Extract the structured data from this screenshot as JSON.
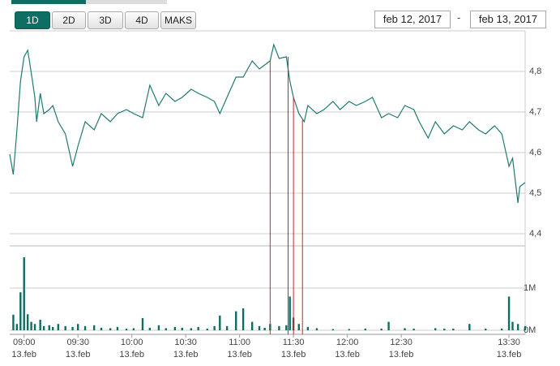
{
  "controls": {
    "ranges": [
      "1D",
      "2D",
      "3D",
      "4D",
      "MAKS"
    ],
    "active_range": 0,
    "from": "feb 12, 2017",
    "separator": "-",
    "to": "feb 13, 2017"
  },
  "chart_data": {
    "type": "line",
    "price": {
      "color": "#1f7a72",
      "x": [
        532,
        534,
        536,
        538,
        540,
        542,
        544,
        546,
        547,
        549,
        551,
        554,
        556,
        559,
        563,
        567,
        570,
        574,
        579,
        583,
        588,
        592,
        597,
        601,
        606,
        610,
        615,
        619,
        624,
        628,
        633,
        637,
        642,
        646,
        649,
        653,
        658,
        662,
        667,
        671,
        674,
        677,
        679,
        682,
        686,
        688,
        690,
        693,
        696,
        698,
        703,
        707,
        712,
        716,
        721,
        725,
        730,
        734,
        739,
        743,
        748,
        752,
        757,
        760,
        765,
        769,
        774,
        779,
        784,
        788,
        793,
        797,
        802,
        806,
        810,
        812,
        815,
        816,
        819
      ],
      "values": [
        4.596,
        4.546,
        4.656,
        4.776,
        4.836,
        4.852,
        4.796,
        4.736,
        4.676,
        4.746,
        4.696,
        4.706,
        4.716,
        4.676,
        4.646,
        4.566,
        4.616,
        4.676,
        4.656,
        4.696,
        4.676,
        4.696,
        4.706,
        4.696,
        4.686,
        4.766,
        4.716,
        4.746,
        4.726,
        4.736,
        4.756,
        4.746,
        4.736,
        4.726,
        4.696,
        4.736,
        4.786,
        4.786,
        4.826,
        4.806,
        4.816,
        4.826,
        4.866,
        4.832,
        4.836,
        4.776,
        4.736,
        4.696,
        4.676,
        4.716,
        4.696,
        4.706,
        4.726,
        4.706,
        4.726,
        4.716,
        4.726,
        4.736,
        4.686,
        4.696,
        4.686,
        4.716,
        4.706,
        4.676,
        4.636,
        4.676,
        4.646,
        4.666,
        4.656,
        4.676,
        4.656,
        4.646,
        4.666,
        4.646,
        4.566,
        4.586,
        4.476,
        4.516,
        4.526
      ]
    },
    "volume": {
      "color": "#0f6e64",
      "axis": "y2",
      "x": [
        534,
        536,
        538,
        540,
        542,
        544,
        546,
        549,
        551,
        554,
        556,
        559,
        563,
        567,
        570,
        574,
        579,
        583,
        588,
        592,
        597,
        601,
        606,
        610,
        615,
        619,
        624,
        628,
        633,
        637,
        642,
        646,
        649,
        653,
        658,
        662,
        667,
        671,
        674,
        677,
        682,
        686,
        688,
        690,
        693,
        698,
        703,
        712,
        721,
        730,
        739,
        743,
        752,
        757,
        769,
        774,
        779,
        788,
        797,
        806,
        810,
        812,
        815,
        819
      ],
      "values": [
        0.37,
        0.15,
        0.9,
        1.73,
        0.38,
        0.2,
        0.15,
        0.25,
        0.1,
        0.12,
        0.08,
        0.15,
        0.1,
        0.08,
        0.15,
        0.1,
        0.12,
        0.06,
        0.05,
        0.08,
        0.04,
        0.05,
        0.29,
        0.06,
        0.12,
        0.05,
        0.08,
        0.06,
        0.05,
        0.08,
        0.04,
        0.1,
        0.35,
        0.1,
        0.45,
        0.52,
        0.2,
        0.1,
        0.06,
        0.15,
        0.1,
        0.12,
        0.8,
        0.3,
        0.15,
        0.08,
        0.05,
        0.03,
        0.03,
        0.04,
        0.04,
        0.2,
        0.05,
        0.04,
        0.05,
        0.04,
        0.04,
        0.15,
        0.04,
        0.04,
        0.8,
        0.2,
        0.15,
        0.1
      ]
    },
    "markers": {
      "color": "#cc2222",
      "x": [
        677,
        687,
        690,
        695
      ],
      "values": [
        4.826,
        4.836,
        4.736,
        4.68
      ]
    },
    "xlim": [
      532,
      819
    ],
    "xticks": [
      {
        "value": 540,
        "label": "09:00"
      },
      {
        "value": 570,
        "label": "09:30"
      },
      {
        "value": 600,
        "label": "10:00"
      },
      {
        "value": 630,
        "label": "10:30"
      },
      {
        "value": 660,
        "label": "11:00"
      },
      {
        "value": 690,
        "label": "11:30"
      },
      {
        "value": 720,
        "label": "12:00"
      },
      {
        "value": 750,
        "label": "12:30"
      },
      {
        "value": 810,
        "label": "13:30"
      }
    ],
    "xtick_date": "13.feb",
    "ylim": [
      4.37,
      4.9
    ],
    "yticks": [
      {
        "value": 4.4,
        "label": "4,4"
      },
      {
        "value": 4.5,
        "label": "4,5"
      },
      {
        "value": 4.6,
        "label": "4,6"
      },
      {
        "value": 4.7,
        "label": "4,7"
      },
      {
        "value": 4.8,
        "label": "4,8"
      }
    ],
    "y2lim": [
      0,
      2
    ],
    "y2ticks": [
      {
        "value": 0,
        "label": "0M"
      },
      {
        "value": 1,
        "label": "1M"
      }
    ],
    "grid": true
  }
}
